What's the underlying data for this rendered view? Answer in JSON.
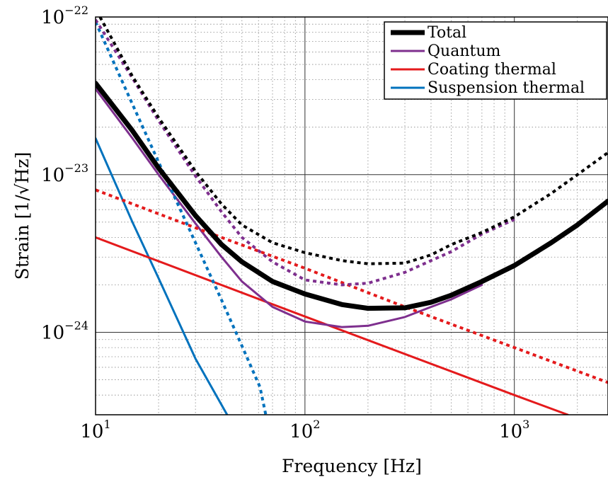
{
  "chart_data": {
    "type": "line",
    "xlabel": "Frequency [Hz]",
    "ylabel": "Strain [1/√Hz]",
    "xscale": "log",
    "yscale": "log",
    "xlim": [
      10,
      2800
    ],
    "ylim": [
      3e-25,
      1e-22
    ],
    "grid": true,
    "legend_position": "top-right",
    "x_ticks": [
      {
        "value": 10,
        "base": "10",
        "exp": "1"
      },
      {
        "value": 100,
        "base": "10",
        "exp": "2"
      },
      {
        "value": 1000,
        "base": "10",
        "exp": "3"
      }
    ],
    "y_ticks": [
      {
        "value": 1e-24,
        "base": "10",
        "exp": "−24"
      },
      {
        "value": 1e-23,
        "base": "10",
        "exp": "−23"
      },
      {
        "value": 1e-22,
        "base": "10",
        "exp": "−22"
      }
    ],
    "series": [
      {
        "name": "Total",
        "color": "#000000",
        "style": "solid",
        "width": 7,
        "legend": true,
        "points": [
          [
            10,
            3.8e-23
          ],
          [
            15,
            1.9e-23
          ],
          [
            20,
            1.1e-23
          ],
          [
            30,
            5.5e-24
          ],
          [
            40,
            3.6e-24
          ],
          [
            50,
            2.8e-24
          ],
          [
            70,
            2.1e-24
          ],
          [
            100,
            1.75e-24
          ],
          [
            150,
            1.5e-24
          ],
          [
            200,
            1.42e-24
          ],
          [
            300,
            1.43e-24
          ],
          [
            400,
            1.55e-24
          ],
          [
            500,
            1.72e-24
          ],
          [
            700,
            2.1e-24
          ],
          [
            1000,
            2.65e-24
          ],
          [
            1500,
            3.7e-24
          ],
          [
            2000,
            4.8e-24
          ],
          [
            2800,
            6.8e-24
          ]
        ]
      },
      {
        "name": "Quantum",
        "color": "#7e2f8e",
        "style": "solid",
        "width": 3,
        "legend": true,
        "points": [
          [
            10,
            3.5e-23
          ],
          [
            15,
            1.7e-23
          ],
          [
            20,
            1e-23
          ],
          [
            30,
            4.9e-24
          ],
          [
            40,
            3e-24
          ],
          [
            50,
            2.1e-24
          ],
          [
            70,
            1.45e-24
          ],
          [
            100,
            1.17e-24
          ],
          [
            150,
            1.08e-24
          ],
          [
            200,
            1.1e-24
          ],
          [
            300,
            1.25e-24
          ],
          [
            400,
            1.45e-24
          ],
          [
            500,
            1.62e-24
          ],
          [
            700,
            2e-24
          ]
        ]
      },
      {
        "name": "Coating thermal",
        "color": "#e41a1c",
        "style": "solid",
        "width": 3,
        "legend": true,
        "points": [
          [
            10,
            4e-24
          ],
          [
            100,
            1.26e-24
          ],
          [
            1000,
            4e-25
          ],
          [
            1800,
            3e-25
          ]
        ]
      },
      {
        "name": "Suspension thermal",
        "color": "#0072bd",
        "style": "solid",
        "width": 3,
        "legend": true,
        "points": [
          [
            10,
            1.7e-23
          ],
          [
            15,
            5e-24
          ],
          [
            20,
            2.2e-24
          ],
          [
            30,
            6.8e-25
          ],
          [
            42.5,
            3e-25
          ]
        ]
      },
      {
        "name": "",
        "color": "#000000",
        "style": "dotted",
        "width": 4,
        "legend": false,
        "points": [
          [
            10.5,
            1e-22
          ],
          [
            15,
            4.2e-23
          ],
          [
            20,
            2.3e-23
          ],
          [
            30,
            1.05e-23
          ],
          [
            40,
            6.5e-24
          ],
          [
            50,
            4.8e-24
          ],
          [
            70,
            3.7e-24
          ],
          [
            100,
            3.2e-24
          ],
          [
            150,
            2.85e-24
          ],
          [
            200,
            2.72e-24
          ],
          [
            300,
            2.75e-24
          ],
          [
            400,
            3.1e-24
          ],
          [
            500,
            3.6e-24
          ],
          [
            700,
            4.3e-24
          ],
          [
            1000,
            5.4e-24
          ],
          [
            1500,
            7.6e-24
          ],
          [
            2000,
            1e-23
          ],
          [
            2800,
            1.38e-23
          ]
        ]
      },
      {
        "name": "",
        "color": "#7e2f8e",
        "style": "dotted",
        "width": 4,
        "legend": false,
        "points": [
          [
            10,
            9.6e-23
          ],
          [
            15,
            4.1e-23
          ],
          [
            20,
            2.2e-23
          ],
          [
            30,
            9.8e-24
          ],
          [
            40,
            5.8e-24
          ],
          [
            50,
            4e-24
          ],
          [
            70,
            2.8e-24
          ],
          [
            100,
            2.15e-24
          ],
          [
            150,
            2e-24
          ],
          [
            200,
            2.05e-24
          ],
          [
            300,
            2.4e-24
          ],
          [
            400,
            2.85e-24
          ],
          [
            500,
            3.25e-24
          ],
          [
            700,
            4.2e-24
          ],
          [
            1000,
            5.2e-24
          ]
        ]
      },
      {
        "name": "",
        "color": "#e41a1c",
        "style": "dotted",
        "width": 4,
        "legend": false,
        "points": [
          [
            10,
            8e-24
          ],
          [
            30,
            4.6e-24
          ],
          [
            100,
            2.55e-24
          ],
          [
            300,
            1.45e-24
          ],
          [
            1000,
            8e-25
          ],
          [
            2800,
            4.8e-25
          ]
        ]
      },
      {
        "name": "",
        "color": "#0072bd",
        "style": "dotted",
        "width": 4,
        "legend": false,
        "points": [
          [
            10,
            9.3e-23
          ],
          [
            15,
            2.8e-23
          ],
          [
            20,
            1.2e-23
          ],
          [
            30,
            3.7e-24
          ],
          [
            40,
            1.6e-24
          ],
          [
            50,
            8.2e-25
          ],
          [
            61,
            4.5e-25
          ],
          [
            65,
            3e-25
          ]
        ]
      }
    ]
  }
}
